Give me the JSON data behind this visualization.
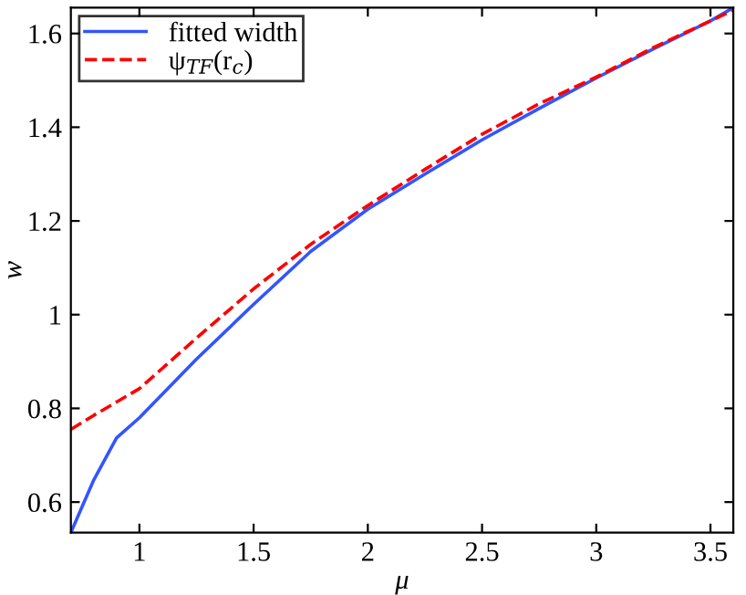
{
  "chart_data": {
    "type": "line",
    "xlabel": "μ",
    "ylabel": "w",
    "xlim": [
      0.7,
      3.6
    ],
    "xticks": [
      1,
      1.5,
      2,
      2.5,
      3,
      3.5
    ],
    "ylim": [
      0.535,
      1.655
    ],
    "yticks": [
      0.6,
      0.8,
      1,
      1.2,
      1.4,
      1.6
    ],
    "grid": false,
    "legend": "top left",
    "series": [
      {
        "name": "fitted width",
        "color": "#3355ff",
        "line_style": "solid",
        "x": [
          0.7,
          0.8,
          0.9,
          1.0,
          1.25,
          1.5,
          1.75,
          2.0,
          2.25,
          2.5,
          2.75,
          3.0,
          3.25,
          3.5,
          3.6
        ],
        "values": [
          0.535,
          0.647,
          0.737,
          0.78,
          0.905,
          1.022,
          1.135,
          1.225,
          1.3,
          1.373,
          1.44,
          1.505,
          1.567,
          1.627,
          1.655
        ]
      },
      {
        "name": "ψ$_{TF}$(r$_{c}$)",
        "color": "#ff0000",
        "line_style": "dashed",
        "x": [
          0.7,
          0.8,
          1.0,
          1.25,
          1.5,
          1.75,
          2.0,
          2.25,
          2.5,
          2.75,
          3.0,
          3.25,
          3.5,
          3.6
        ],
        "values": [
          0.755,
          0.785,
          0.842,
          0.95,
          1.055,
          1.15,
          1.233,
          1.31,
          1.385,
          1.45,
          1.507,
          1.57,
          1.627,
          1.65
        ]
      }
    ]
  }
}
